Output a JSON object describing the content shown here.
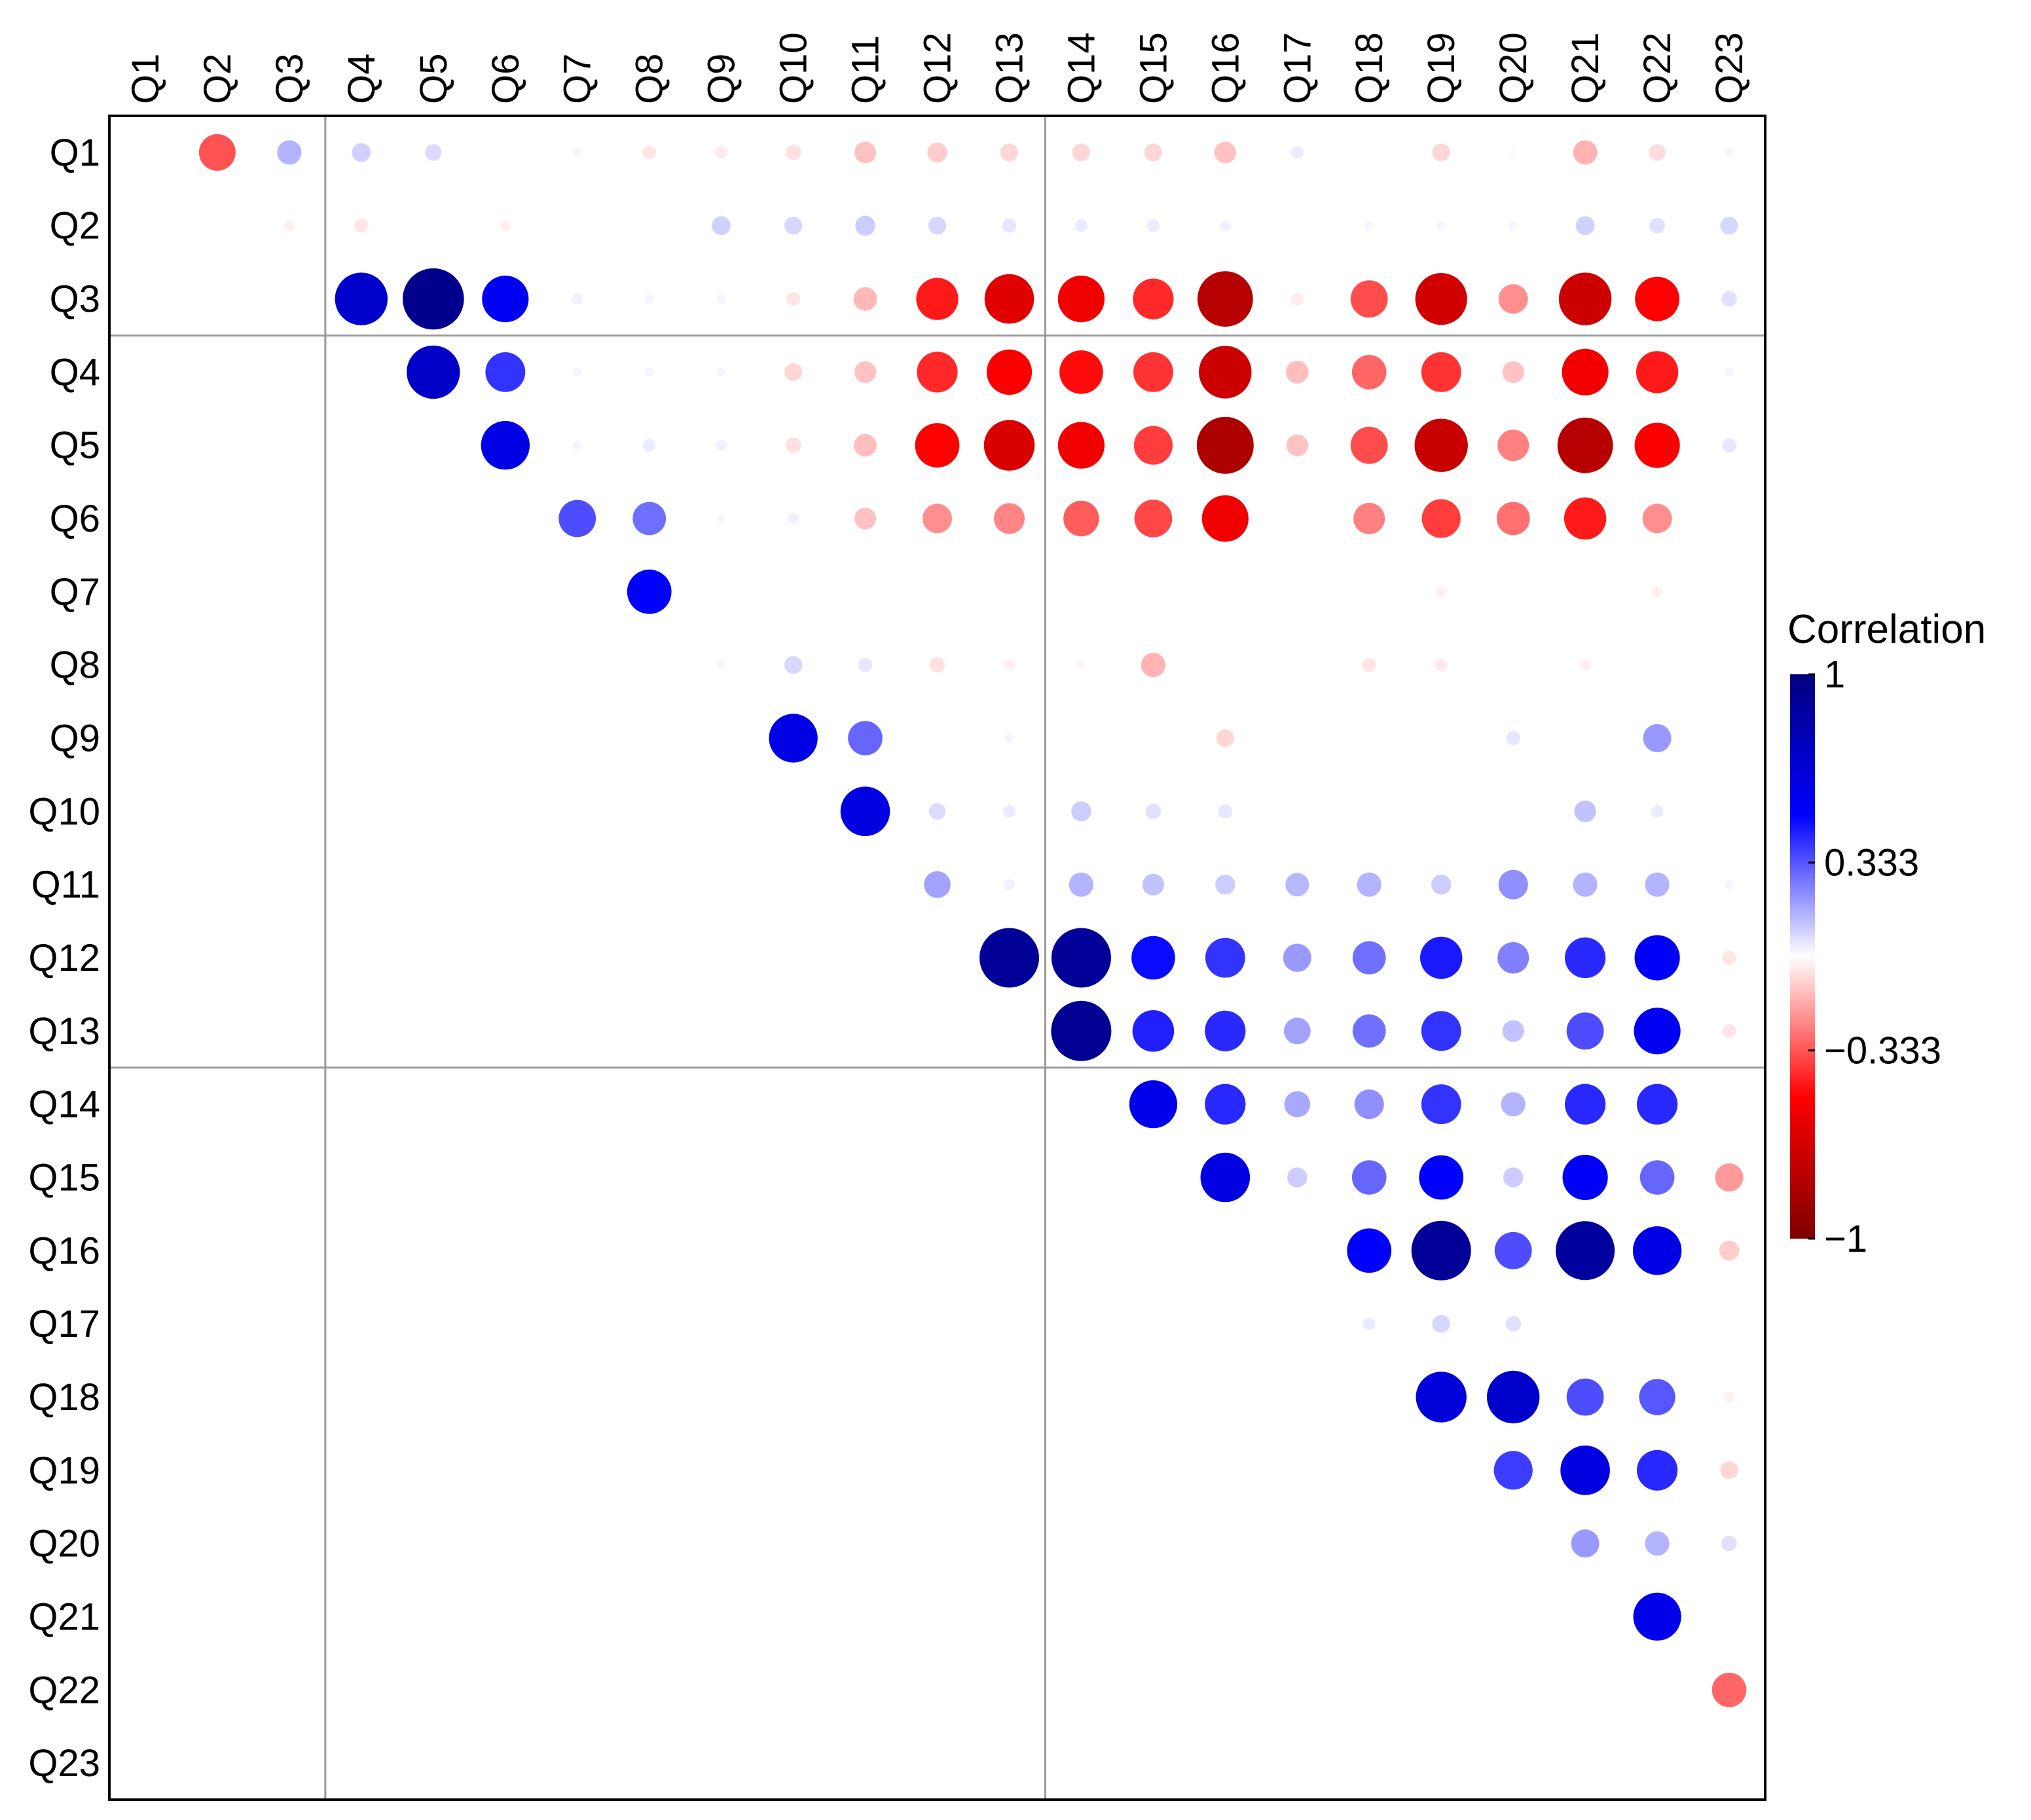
{
  "chart_data": {
    "type": "correlogram",
    "variables": [
      "Q1",
      "Q2",
      "Q3",
      "Q4",
      "Q5",
      "Q6",
      "Q7",
      "Q8",
      "Q9",
      "Q10",
      "Q11",
      "Q12",
      "Q13",
      "Q14",
      "Q15",
      "Q16",
      "Q17",
      "Q18",
      "Q19",
      "Q20",
      "Q21",
      "Q22",
      "Q23"
    ],
    "upper_triangle_rows": [
      [
        -0.34,
        0.15,
        0.09,
        0.07,
        0,
        0.02,
        -0.05,
        -0.04,
        -0.06,
        -0.12,
        -0.1,
        -0.08,
        -0.08,
        -0.08,
        -0.12,
        0.04,
        0,
        -0.08,
        0.01,
        -0.15,
        -0.07,
        0.02
      ],
      [
        -0.03,
        -0.05,
        0,
        -0.03,
        0,
        0,
        0.09,
        0.08,
        0.1,
        0.08,
        0.05,
        0.04,
        0.04,
        0.03,
        0,
        0.02,
        0.02,
        0.02,
        0.09,
        0.06,
        0.08
      ],
      [
        0.7,
        0.95,
        0.55,
        0.03,
        0.02,
        0.02,
        -0.05,
        -0.14,
        -0.45,
        -0.62,
        -0.55,
        -0.42,
        -0.78,
        -0.04,
        -0.35,
        -0.68,
        -0.22,
        -0.7,
        -0.5,
        0.06
      ],
      [
        0.72,
        0.4,
        0.02,
        0.02,
        0.02,
        -0.08,
        -0.12,
        -0.42,
        -0.52,
        -0.48,
        -0.4,
        -0.7,
        -0.13,
        -0.3,
        -0.4,
        -0.12,
        -0.55,
        -0.45,
        0.02
      ],
      [
        0.6,
        0.02,
        0.04,
        0.03,
        -0.06,
        -0.13,
        -0.5,
        -0.65,
        -0.55,
        -0.38,
        -0.82,
        -0.12,
        -0.35,
        -0.72,
        -0.25,
        -0.78,
        -0.52,
        0.05
      ],
      [
        0.35,
        0.28,
        0.02,
        0.03,
        -0.12,
        -0.22,
        -0.24,
        -0.32,
        -0.36,
        -0.55,
        0,
        -0.25,
        -0.38,
        -0.28,
        -0.45,
        -0.22,
        0
      ],
      [
        0.5,
        0,
        0,
        0,
        0,
        0,
        0,
        0,
        0,
        0,
        0,
        -0.03,
        0,
        0,
        -0.03,
        0
      ],
      [
        0.02,
        0.08,
        0.05,
        -0.06,
        -0.03,
        -0.02,
        -0.15,
        0,
        0,
        -0.05,
        -0.04,
        0,
        -0.03,
        0
      ],
      [
        0.6,
        0.3,
        0,
        0.02,
        0,
        0,
        -0.08,
        0,
        0,
        0,
        0.05,
        0,
        0.2
      ],
      [
        0.62,
        0.07,
        0.04,
        0.1,
        0.06,
        0.05,
        0,
        0,
        0,
        0,
        0.12,
        0.04,
        0
      ],
      [
        0.18,
        0.03,
        0.15,
        0.12,
        0.1,
        0.14,
        0.15,
        0.1,
        0.22,
        0.15,
        0.15,
        0.02
      ],
      [
        0.9,
        0.9,
        0.48,
        0.4,
        0.2,
        0.28,
        0.45,
        0.25,
        0.42,
        0.52,
        -0.05
      ],
      [
        0.92,
        0.44,
        0.42,
        0.18,
        0.28,
        0.4,
        0.12,
        0.35,
        0.55,
        -0.05
      ],
      [
        0.58,
        0.42,
        0.17,
        0.22,
        0.4,
        0.15,
        0.42,
        0.42,
        0
      ],
      [
        0.62,
        0.1,
        0.3,
        0.5,
        0.1,
        0.52,
        0.3,
        -0.2
      ],
      [
        0,
        0.5,
        0.9,
        0.35,
        0.88,
        0.6,
        -0.1
      ],
      [
        0.04,
        0.08,
        0.06,
        0,
        0,
        0
      ],
      [
        0.65,
        0.7,
        0.35,
        0.33,
        -0.03
      ],
      [
        0.38,
        0.62,
        0.42,
        -0.08
      ],
      [
        0.2,
        0.15,
        0.06
      ],
      [
        0.58,
        0
      ],
      [
        -0.3
      ]
    ],
    "legend_title": "Correlation",
    "legend_ticks": [
      "1",
      "0.333",
      "−0.333",
      "−1"
    ],
    "legend_tick_values": [
      1,
      0.333,
      -0.333,
      -1
    ],
    "color_scale": {
      "negative": "#7f0000",
      "mid_negative": "#ff0000",
      "zero": "#ffffff",
      "mid_positive": "#0000ff",
      "positive": "#00007f"
    },
    "cluster_boundaries_after": [
      3,
      13
    ],
    "grid": false,
    "legend_position": "right"
  }
}
